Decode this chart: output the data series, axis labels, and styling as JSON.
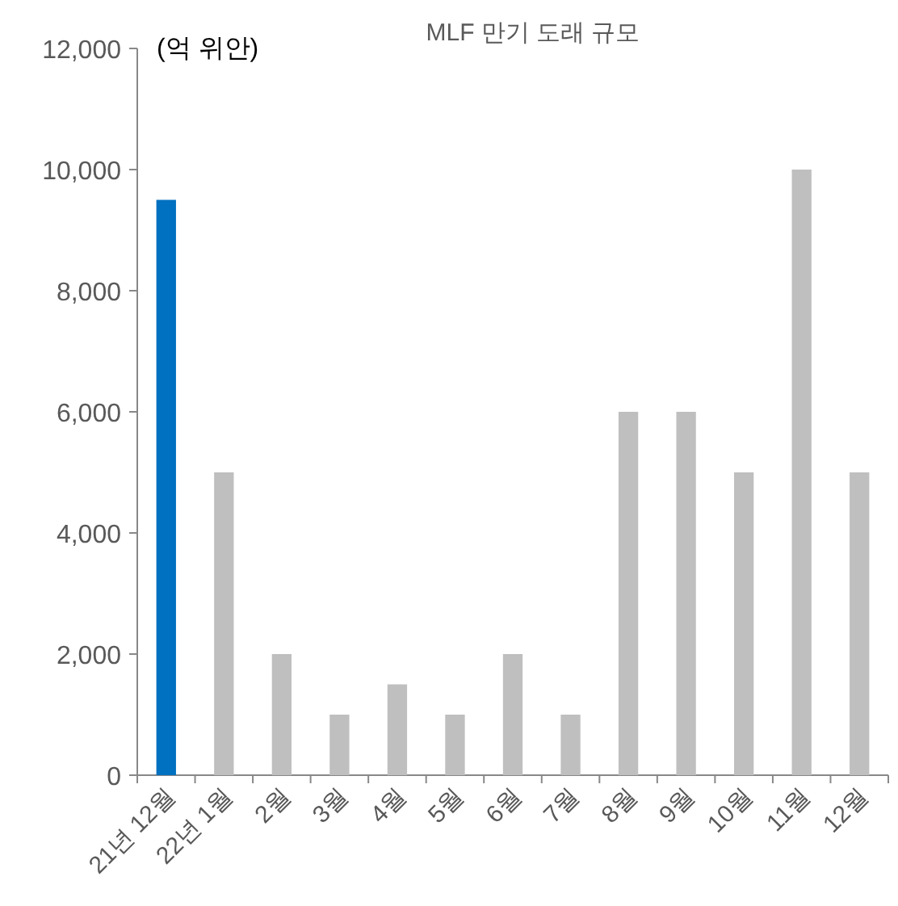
{
  "chart_data": {
    "type": "bar",
    "title": "MLF 만기 도래 규모",
    "ylabel": "(억 위안)",
    "categories": [
      "21년 12월",
      "22년 1월",
      "2월",
      "3월",
      "4월",
      "5월",
      "6월",
      "7월",
      "8월",
      "9월",
      "10월",
      "11월",
      "12월"
    ],
    "values": [
      9500,
      5000,
      2000,
      1000,
      1500,
      1000,
      2000,
      1000,
      6000,
      6000,
      5000,
      10000,
      5000
    ],
    "colors": [
      "#0070c0",
      "#bfbfbf",
      "#bfbfbf",
      "#bfbfbf",
      "#bfbfbf",
      "#bfbfbf",
      "#bfbfbf",
      "#bfbfbf",
      "#bfbfbf",
      "#bfbfbf",
      "#bfbfbf",
      "#bfbfbf",
      "#bfbfbf"
    ],
    "ylim": [
      0,
      12000
    ],
    "yticks": [
      {
        "value": 0,
        "label": "0"
      },
      {
        "value": 2000,
        "label": "2,000"
      },
      {
        "value": 4000,
        "label": "4,000"
      },
      {
        "value": 6000,
        "label": "6,000"
      },
      {
        "value": 8000,
        "label": "8,000"
      },
      {
        "value": 10000,
        "label": "10,000"
      },
      {
        "value": 12000,
        "label": "12,000"
      }
    ]
  }
}
